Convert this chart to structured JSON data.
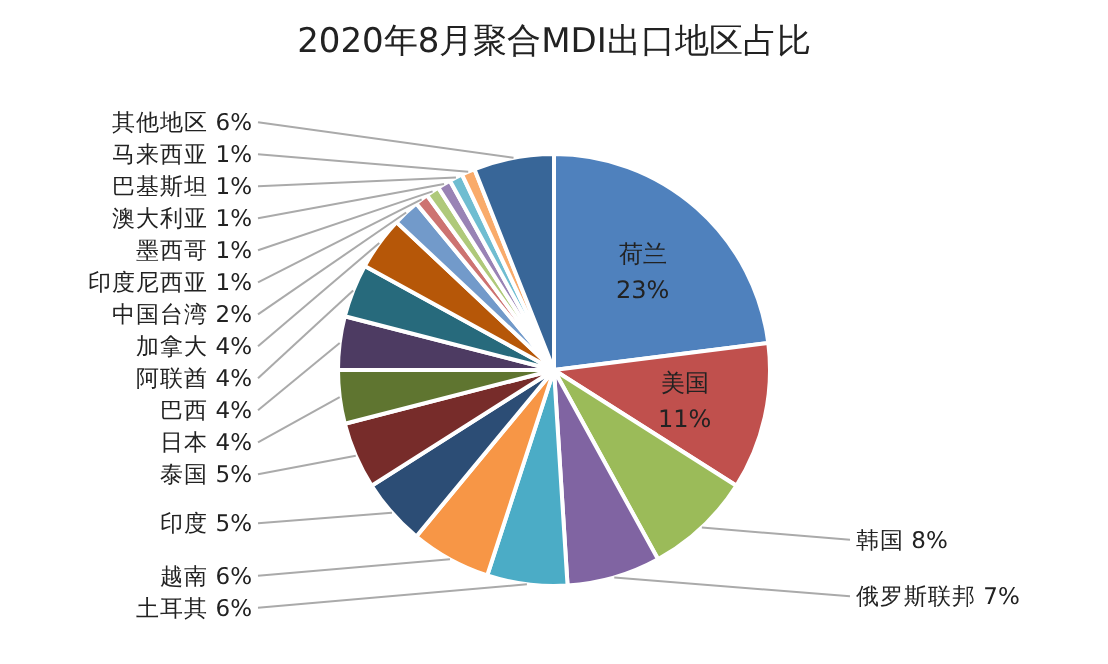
{
  "chart_data": {
    "type": "pie",
    "title": "2020年8月聚合MDI出口地区占比",
    "categories": [
      "荷兰",
      "美国",
      "韩国",
      "俄罗斯联邦",
      "土耳其",
      "越南",
      "印度",
      "泰国",
      "日本",
      "巴西",
      "阿联酋",
      "加拿大",
      "中国台湾",
      "印度尼西亚",
      "墨西哥",
      "澳大利亚",
      "巴基斯坦",
      "马来西亚",
      "其他地区"
    ],
    "values": [
      23,
      11,
      8,
      7,
      6,
      6,
      5,
      5,
      4,
      4,
      4,
      4,
      2,
      1,
      1,
      1,
      1,
      1,
      6
    ],
    "value_labels": [
      "23%",
      "11%",
      "8%",
      "7%",
      "6%",
      "6%",
      "5%",
      "5%",
      "4%",
      "4%",
      "4%",
      "4%",
      "2%",
      "1%",
      "1%",
      "1%",
      "1%",
      "1%",
      "6%"
    ],
    "colors": [
      "#4f81bd",
      "#c0504d",
      "#9bbb59",
      "#8064a2",
      "#4bacc6",
      "#f79646",
      "#2c4d75",
      "#772c2a",
      "#5f7530",
      "#4d3b62",
      "#276a7c",
      "#b65708",
      "#729aca",
      "#cd7371",
      "#afc97a",
      "#9983b5",
      "#6fbdd1",
      "#f9ab6b",
      "#386698"
    ]
  }
}
